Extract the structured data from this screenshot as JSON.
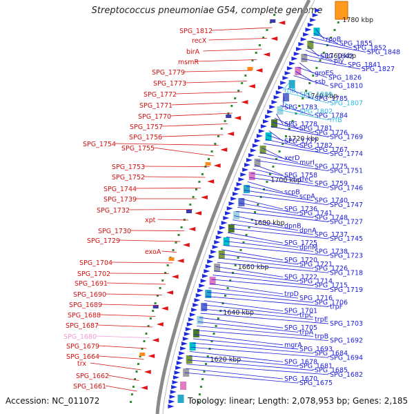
{
  "title": "Streptococcus pneumoniae G54, complete genome",
  "accession": "Accession: NC_011072",
  "topology": "Topology: linear; Length: 2,078,953 bp; Genes: 2,185",
  "colors": {
    "left_labels": "#d11010",
    "right_labels": "#1a1adb",
    "rna_labels": "#27b9e3",
    "pseudo_label": "#f09ad6",
    "backbone": "#8a8a8a",
    "forward_arrows": "#1d2be0",
    "reverse_arrows": "#e01414"
  },
  "scale_labels": [
    "1780 kbp",
    "1760 kbp",
    "1740 kbp",
    "1720 kbp",
    "1700 kbp",
    "1680 kbp",
    "1660 kbp",
    "1640 kbp",
    "1620 kbp"
  ],
  "left_genes": [
    "SPG_1812",
    "recX",
    "birA",
    "msmR",
    "SPG_1779",
    "SPG_1773",
    "SPG_1772",
    "SPG_1771",
    "SPG_1770",
    "SPG_1757",
    "SPG_1756",
    "SPG_1754",
    "SPG_1755",
    "SPG_1753",
    "SPG_1752",
    "SPG_1744",
    "SPG_1739",
    "SPG_1732",
    "xpt",
    "SPG_1730",
    "SPG_1729",
    "exoA",
    "SPG_1704",
    "SPG_1702",
    "SPG_1691",
    "SPG_1690",
    "SPG_1689",
    "SPG_1688",
    "SPG_1687",
    "SPG_1680",
    "SPG_1679",
    "SPG_1664",
    "trx",
    "SPG_1662",
    "SPG_1661"
  ],
  "right_genes": [
    "rpoB",
    "SPG_1855",
    "SPG_1852",
    "SPG_1848",
    "SPG_1842",
    "ply",
    "SPG_1841",
    "SPG_1827",
    "groES",
    "SPG_1826",
    "ssb",
    "SPG_1810",
    "rrlB",
    "SPG_1809",
    "SPG_1785",
    "SPG_1807",
    "SPG_1783",
    "SPG_1802",
    "SPG_1784",
    "rrfB",
    "SPG_1778",
    "SPG_1781",
    "SPG_1776",
    "SPG_1769",
    "SPG_1777",
    "SPG_1782",
    "SPG_1767",
    "SPG_1774",
    "xerD",
    "murI",
    "SPG_1775",
    "SPG_1751",
    "SPG_1758",
    "treC",
    "SPG_1759",
    "SPG_1746",
    "scpB",
    "scpA",
    "SPG_1740",
    "SPG_1747",
    "SPG_1736",
    "SPG_1741",
    "SPG_1748",
    "SPG_1727",
    "dpnB",
    "dpnA",
    "SPG_1737",
    "SPG_1745",
    "SPG_1725",
    "dpnM",
    "SPG_1738",
    "SPG_1723",
    "SPG_1720",
    "SPG_1721",
    "SPG_1726",
    "SPG_1718",
    "SPG_1722",
    "SPG_1714",
    "SPG_1715",
    "SPG_1719",
    "trpD",
    "SPG_1716",
    "SPG_1706",
    "trpF",
    "SPG_1701",
    "trpC",
    "trpE",
    "SPG_1703",
    "SPG_1705",
    "trpA",
    "trpB",
    "SPG_1692",
    "mgrA",
    "SPG_1693",
    "SPG_1684",
    "SPG_1694",
    "SPG_1678",
    "SPG_1681",
    "SPG_1685",
    "SPG_1682",
    "SPG_1670",
    "SPG_1675"
  ]
}
